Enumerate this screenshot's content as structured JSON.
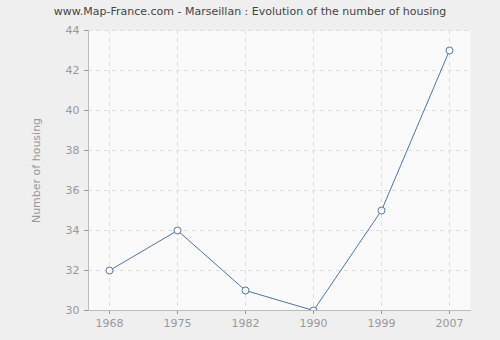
{
  "chart_data": {
    "type": "line",
    "title": "www.Map-France.com - Marseillan : Evolution of the number of housing",
    "y_label": "Number of housing",
    "categories": [
      "1968",
      "1975",
      "1982",
      "1990",
      "1999",
      "2007"
    ],
    "values": [
      32,
      34,
      31,
      30,
      35,
      43
    ],
    "color": "#4a76a8",
    "marker": "circle",
    "ylim": [
      30,
      44
    ],
    "yticks": [
      30,
      32,
      34,
      36,
      38,
      40,
      42,
      44
    ],
    "grid": true
  }
}
